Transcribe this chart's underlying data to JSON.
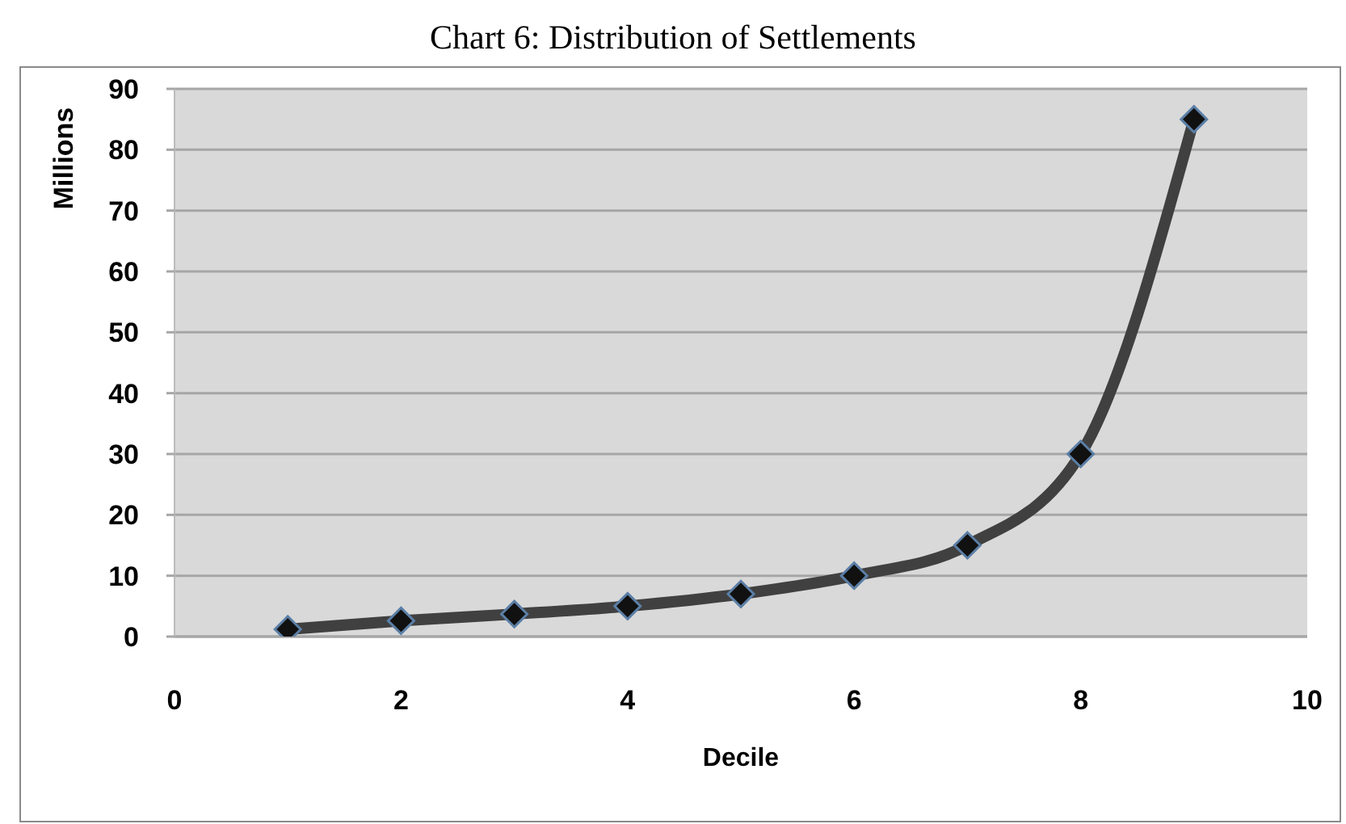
{
  "chart_data": {
    "type": "line",
    "title": "Chart 6: Distribution of Settlements",
    "xlabel": "Decile",
    "ylabel": "Millions",
    "x": [
      1,
      2,
      3,
      4,
      5,
      6,
      7,
      8,
      9
    ],
    "series": [
      {
        "color": "#404040",
        "values": [
          1.2,
          2.6,
          3.7,
          5,
          7,
          10,
          15,
          30,
          85
        ]
      }
    ],
    "xlim": [
      0,
      10
    ],
    "xticks": [
      0,
      2,
      4,
      6,
      8,
      10
    ],
    "ylim": [
      0,
      90
    ],
    "yticks": [
      0,
      10,
      20,
      30,
      40,
      50,
      60,
      70,
      80,
      90
    ],
    "grid": "y",
    "marker": "diamond",
    "line_style": "solid"
  }
}
